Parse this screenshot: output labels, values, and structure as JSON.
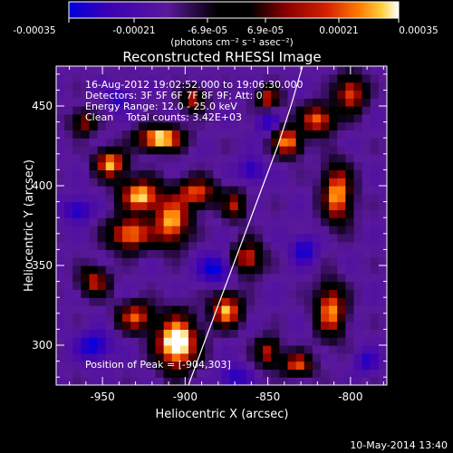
{
  "plot_title": "Reconstructed RHESSI Image",
  "info_lines": [
    "16-Aug-2012 19:02:52.000 to 19:06:30.000",
    "Detectors: 3F 5F 6F 7F 8F 9F; Att: 0",
    "Energy Range: 12.0 - 25.0 keV",
    "Clean    Total counts: 3.42E+03"
  ],
  "peak_annotation": "Position of Peak = [-904,303]",
  "date_stamp": "10-May-2014 13:40",
  "colorbar": {
    "tick_labels": [
      "-0.00035",
      "-0.00021",
      "-6.9e-05",
      "6.9e-05",
      "0.00021",
      "0.00035"
    ],
    "range": [
      -0.00035,
      0.00035
    ],
    "unit_label": "(photons cm⁻² s⁻¹ asec⁻²)",
    "colors": [
      "#0000e0",
      "#3c00b4",
      "#5a189a",
      "#000000",
      "#8a0000",
      "#d42000",
      "#ff7a00",
      "#ffd040",
      "#ffffff"
    ]
  },
  "chart_data": {
    "type": "heatmap",
    "title": "Reconstructed RHESSI Image",
    "xlabel": "Heliocentric X (arcsec)",
    "ylabel": "Heliocentric Y (arcsec)",
    "x_ticks": [
      -950,
      -900,
      -850,
      -800
    ],
    "y_ticks": [
      300,
      350,
      400,
      450
    ],
    "xlim": [
      -978,
      -778
    ],
    "ylim": [
      275,
      475
    ],
    "x_tick_labels": [
      "-950",
      "-900",
      "-850",
      "-800"
    ],
    "y_tick_labels": [
      "300",
      "350",
      "400",
      "450"
    ],
    "peak_position": [
      -904,
      303
    ],
    "value_range": [
      -0.00035,
      0.00035
    ],
    "grid_cells": [
      40,
      40
    ],
    "bright_sources": [
      {
        "x": -915,
        "y": 430,
        "amp": 1.0,
        "sx": 9,
        "sy": 5
      },
      {
        "x": -945,
        "y": 414,
        "amp": 0.85,
        "sx": 6,
        "sy": 6
      },
      {
        "x": -927,
        "y": 394,
        "amp": 0.9,
        "sx": 8,
        "sy": 7
      },
      {
        "x": -908,
        "y": 378,
        "amp": 0.85,
        "sx": 7,
        "sy": 10
      },
      {
        "x": -893,
        "y": 396,
        "amp": 0.7,
        "sx": 8,
        "sy": 6
      },
      {
        "x": -933,
        "y": 370,
        "amp": 0.8,
        "sx": 9,
        "sy": 7
      },
      {
        "x": -905,
        "y": 302,
        "amp": 1.15,
        "sx": 8,
        "sy": 11
      },
      {
        "x": -930,
        "y": 318,
        "amp": 0.7,
        "sx": 7,
        "sy": 6
      },
      {
        "x": -875,
        "y": 322,
        "amp": 0.85,
        "sx": 6,
        "sy": 7
      },
      {
        "x": -862,
        "y": 355,
        "amp": 0.65,
        "sx": 6,
        "sy": 7
      },
      {
        "x": -850,
        "y": 296,
        "amp": 0.6,
        "sx": 5,
        "sy": 6
      },
      {
        "x": -832,
        "y": 288,
        "amp": 0.7,
        "sx": 6,
        "sy": 5
      },
      {
        "x": -812,
        "y": 322,
        "amp": 0.8,
        "sx": 6,
        "sy": 11
      },
      {
        "x": -808,
        "y": 395,
        "amp": 0.85,
        "sx": 6,
        "sy": 12
      },
      {
        "x": -838,
        "y": 428,
        "amp": 0.8,
        "sx": 6,
        "sy": 6
      },
      {
        "x": -820,
        "y": 442,
        "amp": 0.75,
        "sx": 7,
        "sy": 6
      },
      {
        "x": -800,
        "y": 458,
        "amp": 0.7,
        "sx": 6,
        "sy": 8
      },
      {
        "x": -895,
        "y": 455,
        "amp": 0.6,
        "sx": 5,
        "sy": 5
      },
      {
        "x": -955,
        "y": 340,
        "amp": 0.6,
        "sx": 6,
        "sy": 6
      },
      {
        "x": -870,
        "y": 388,
        "amp": 0.55,
        "sx": 5,
        "sy": 6
      },
      {
        "x": -962,
        "y": 440,
        "amp": 0.55,
        "sx": 5,
        "sy": 5
      },
      {
        "x": -850,
        "y": 455,
        "amp": 0.6,
        "sx": 5,
        "sy": 5
      }
    ],
    "dark_sources": [
      {
        "x": -965,
        "y": 385,
        "amp": 0.55,
        "sx": 6,
        "sy": 5
      },
      {
        "x": -955,
        "y": 300,
        "amp": 0.6,
        "sx": 7,
        "sy": 6
      },
      {
        "x": -882,
        "y": 348,
        "amp": 0.6,
        "sx": 7,
        "sy": 6
      },
      {
        "x": -860,
        "y": 410,
        "amp": 0.5,
        "sx": 5,
        "sy": 5
      },
      {
        "x": -828,
        "y": 360,
        "amp": 0.55,
        "sx": 5,
        "sy": 6
      },
      {
        "x": -940,
        "y": 455,
        "amp": 0.45,
        "sx": 5,
        "sy": 5
      },
      {
        "x": -870,
        "y": 280,
        "amp": 0.5,
        "sx": 6,
        "sy": 5
      },
      {
        "x": -790,
        "y": 290,
        "amp": 0.45,
        "sx": 5,
        "sy": 5
      },
      {
        "x": -850,
        "y": 440,
        "amp": 0.45,
        "sx": 5,
        "sy": 5
      }
    ],
    "limb_curve": [
      [
        -898,
        275
      ],
      [
        -889,
        300
      ],
      [
        -880,
        325
      ],
      [
        -871,
        350
      ],
      [
        -862,
        375
      ],
      [
        -853,
        400
      ],
      [
        -844,
        425
      ],
      [
        -836,
        450
      ],
      [
        -829,
        475
      ]
    ]
  }
}
